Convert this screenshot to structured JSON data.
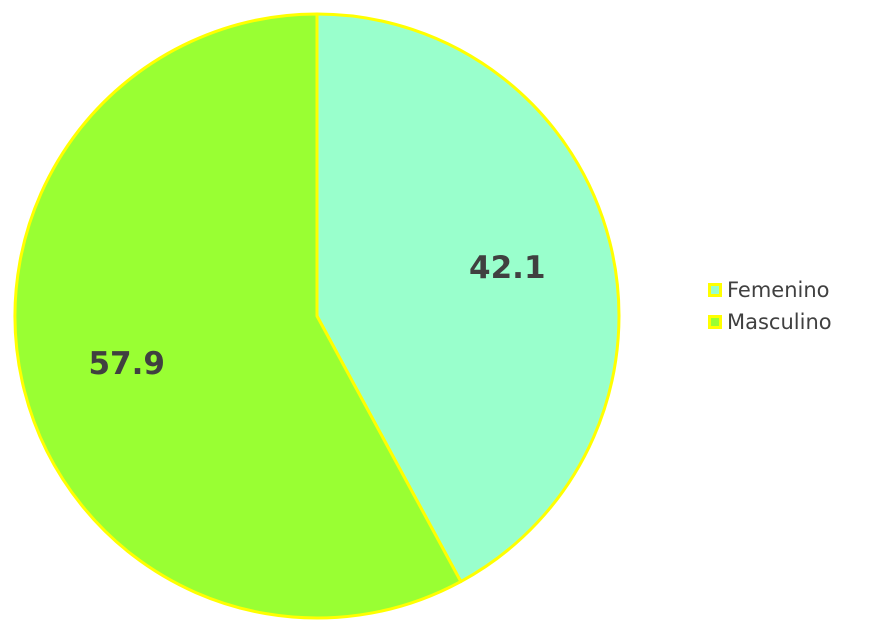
{
  "chart_data": {
    "type": "pie",
    "categories": [
      "Femenino",
      "Masculino"
    ],
    "values": [
      42.1,
      57.9
    ],
    "data_labels": [
      "42.1",
      "57.9"
    ],
    "colors": [
      "#99ffcc",
      "#99ff33"
    ],
    "edge_color": "#ffff00",
    "start_angle": "12 o'clock",
    "direction": "clockwise",
    "legend_position": "right"
  }
}
